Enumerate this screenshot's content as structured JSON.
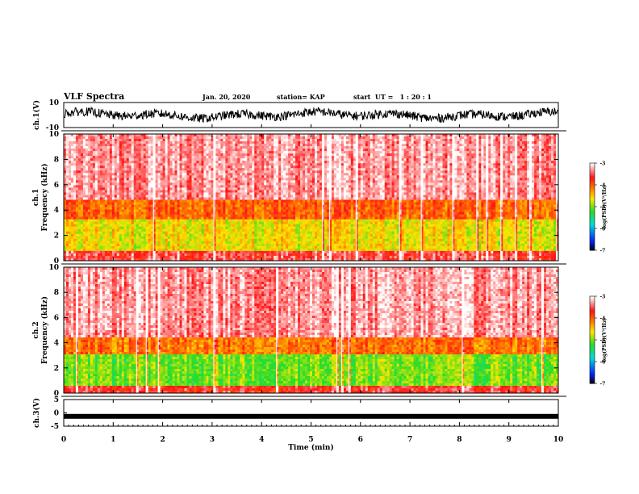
{
  "header": {
    "title": "VLF Spectra",
    "date": "Jan. 20, 2020",
    "station": "station= KAP",
    "start": "start  UT =   1 : 20 : 1"
  },
  "chart_data": [
    {
      "type": "line",
      "title": "",
      "ylabel": "ch.1(V)",
      "ylim": [
        -10,
        10
      ],
      "yticks": [
        "-10",
        "10"
      ],
      "description_data": "raw waveform, noisy, oscillating roughly between -5 and 7 V",
      "xlim": [
        0,
        10
      ]
    },
    {
      "type": "heatmap",
      "ylabel": "ch.1 Frequency (kHz)",
      "ylim": [
        0,
        10
      ],
      "yticks": [
        "0",
        "2",
        "4",
        "6",
        "8",
        "10"
      ],
      "xlim": [
        0,
        10
      ],
      "colorbar": {
        "label": "log(PSD)(V²/Hz)",
        "range": [
          -7,
          -3
        ],
        "ticks": [
          "-3",
          "-4",
          "-5",
          "-6",
          "-7"
        ]
      },
      "bands": [
        {
          "from_khz": 0.0,
          "to_khz": 0.8,
          "log_psd": -3.5
        },
        {
          "from_khz": 0.8,
          "to_khz": 3.2,
          "log_psd": -4.6
        },
        {
          "from_khz": 3.2,
          "to_khz": 4.8,
          "log_psd": -4.0
        },
        {
          "from_khz": 4.8,
          "to_khz": 10.0,
          "log_psd": -3.3
        }
      ]
    },
    {
      "type": "heatmap",
      "ylabel": "ch.2 Frequency (kHz)",
      "ylim": [
        0,
        10
      ],
      "yticks": [
        "0",
        "2",
        "4",
        "6",
        "8",
        "10"
      ],
      "xlim": [
        0,
        10
      ],
      "colorbar": {
        "label": "log(PSD)(V²/Hz)",
        "range": [
          -7,
          -3
        ],
        "ticks": [
          "-3",
          "-4",
          "-5",
          "-6",
          "-7"
        ]
      },
      "bands": [
        {
          "from_khz": 0.0,
          "to_khz": 0.6,
          "log_psd": -3.6
        },
        {
          "from_khz": 0.6,
          "to_khz": 3.0,
          "log_psd": -5.0
        },
        {
          "from_khz": 3.0,
          "to_khz": 4.5,
          "log_psd": -4.1
        },
        {
          "from_khz": 4.5,
          "to_khz": 10.0,
          "log_psd": -3.3
        }
      ]
    },
    {
      "type": "line",
      "ylabel": "ch.3(V)",
      "ylim": [
        -5,
        5
      ],
      "yticks": [
        "-5",
        "0",
        "5"
      ],
      "level_volts": -1.3,
      "xlim": [
        0,
        10
      ],
      "xlabel": "Time  (min)",
      "xticks": [
        "0",
        "1",
        "2",
        "3",
        "4",
        "5",
        "6",
        "7",
        "8",
        "9",
        "10"
      ]
    }
  ],
  "colors": {
    "red": "#ff1a1a",
    "orange": "#ff8c00",
    "yellow": "#ffe000",
    "green": "#22dd22",
    "blue": "#0044ff",
    "black": "#000000"
  }
}
